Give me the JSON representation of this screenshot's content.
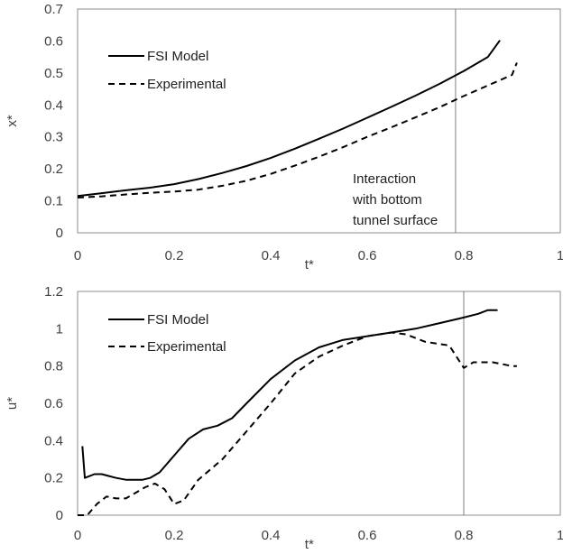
{
  "chart_data": [
    {
      "type": "line",
      "xlabel": "t*",
      "ylabel": "x*",
      "xlim": [
        0,
        1
      ],
      "ylim": [
        0,
        0.7
      ],
      "xticks": [
        0,
        0.2,
        0.4,
        0.6,
        0.8,
        1
      ],
      "xtick_labels": [
        "0",
        "0.2",
        "0.4",
        "0.6",
        "0.8",
        "1"
      ],
      "yticks": [
        0,
        0.1,
        0.2,
        0.3,
        0.4,
        0.5,
        0.6,
        0.7
      ],
      "ytick_labels": [
        "0",
        "0.1",
        "0.2",
        "0.3",
        "0.4",
        "0.5",
        "0.6",
        "0.7"
      ],
      "grid": false,
      "legend_position": "top-left",
      "vertical_line_x": 0.783,
      "annotation": [
        "Interaction",
        "with bottom",
        "tunnel surface"
      ],
      "series": [
        {
          "name": "FSI Model",
          "style": "solid",
          "color": "#000000",
          "x": [
            0,
            0.05,
            0.1,
            0.15,
            0.2,
            0.25,
            0.3,
            0.35,
            0.4,
            0.45,
            0.5,
            0.55,
            0.6,
            0.65,
            0.7,
            0.75,
            0.8,
            0.85,
            0.875
          ],
          "y": [
            0.115,
            0.124,
            0.133,
            0.141,
            0.152,
            0.168,
            0.187,
            0.209,
            0.234,
            0.263,
            0.294,
            0.326,
            0.36,
            0.394,
            0.429,
            0.466,
            0.506,
            0.55,
            0.602
          ]
        },
        {
          "name": "Experimental",
          "style": "dashed",
          "color": "#000000",
          "x": [
            0,
            0.05,
            0.1,
            0.15,
            0.2,
            0.25,
            0.3,
            0.35,
            0.4,
            0.45,
            0.5,
            0.55,
            0.6,
            0.65,
            0.7,
            0.75,
            0.8,
            0.85,
            0.9,
            0.91
          ],
          "y": [
            0.11,
            0.114,
            0.12,
            0.125,
            0.129,
            0.135,
            0.147,
            0.163,
            0.184,
            0.21,
            0.238,
            0.268,
            0.3,
            0.33,
            0.361,
            0.393,
            0.428,
            0.461,
            0.494,
            0.532
          ]
        }
      ]
    },
    {
      "type": "line",
      "xlabel": "t*",
      "ylabel": "u*",
      "xlim": [
        0,
        1
      ],
      "ylim": [
        0,
        1.2
      ],
      "xticks": [
        0,
        0.2,
        0.4,
        0.6,
        0.8,
        1
      ],
      "xtick_labels": [
        "0",
        "0.2",
        "0.4",
        "0.6",
        "0.8",
        "1"
      ],
      "yticks": [
        0,
        0.2,
        0.4,
        0.6,
        0.8,
        1,
        1.2
      ],
      "ytick_labels": [
        "0",
        "0.2",
        "0.4",
        "0.6",
        "0.8",
        "1",
        "1.2"
      ],
      "grid": false,
      "legend_position": "top-left",
      "vertical_line_x": 0.8,
      "series": [
        {
          "name": "FSI Model",
          "style": "solid",
          "color": "#000000",
          "x": [
            0.01,
            0.015,
            0.025,
            0.035,
            0.05,
            0.065,
            0.08,
            0.1,
            0.12,
            0.135,
            0.15,
            0.17,
            0.2,
            0.23,
            0.26,
            0.29,
            0.32,
            0.35,
            0.4,
            0.45,
            0.5,
            0.55,
            0.6,
            0.65,
            0.7,
            0.75,
            0.8,
            0.83,
            0.85,
            0.87
          ],
          "y": [
            0.37,
            0.2,
            0.21,
            0.22,
            0.22,
            0.21,
            0.2,
            0.19,
            0.19,
            0.19,
            0.2,
            0.23,
            0.32,
            0.41,
            0.46,
            0.48,
            0.52,
            0.6,
            0.73,
            0.83,
            0.9,
            0.94,
            0.96,
            0.98,
            1.0,
            1.03,
            1.06,
            1.08,
            1.1,
            1.1
          ]
        },
        {
          "name": "Experimental",
          "style": "dashed",
          "color": "#000000",
          "x": [
            0,
            0.02,
            0.04,
            0.06,
            0.08,
            0.1,
            0.12,
            0.14,
            0.16,
            0.18,
            0.2,
            0.22,
            0.25,
            0.3,
            0.35,
            0.4,
            0.45,
            0.5,
            0.55,
            0.6,
            0.65,
            0.68,
            0.72,
            0.77,
            0.79,
            0.8,
            0.82,
            0.86,
            0.9,
            0.91
          ],
          "y": [
            0.0,
            0.0,
            0.06,
            0.1,
            0.09,
            0.09,
            0.12,
            0.15,
            0.17,
            0.14,
            0.06,
            0.08,
            0.19,
            0.3,
            0.45,
            0.6,
            0.76,
            0.85,
            0.91,
            0.96,
            0.98,
            0.97,
            0.93,
            0.91,
            0.83,
            0.79,
            0.82,
            0.82,
            0.8,
            0.8
          ]
        }
      ]
    }
  ]
}
